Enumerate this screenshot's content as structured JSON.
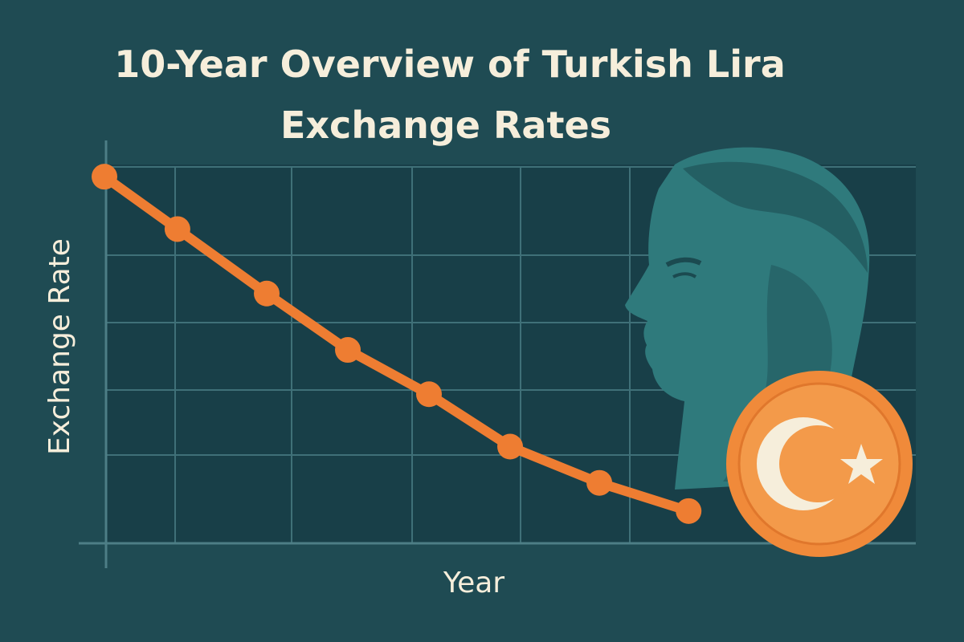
{
  "chart_data": {
    "type": "line",
    "title": [
      "10-Year Overview of Turkish Lira",
      "Exchange Rates"
    ],
    "x_label": "Year",
    "y_label": "Exchange Rate",
    "x": [
      0,
      9,
      20,
      30,
      40,
      50,
      61,
      72
    ],
    "values": [
      91,
      78,
      62,
      48,
      37,
      24,
      15,
      8
    ],
    "xlim": [
      0,
      100
    ],
    "ylim": [
      0,
      100
    ],
    "color": "#ee7d32"
  }
}
